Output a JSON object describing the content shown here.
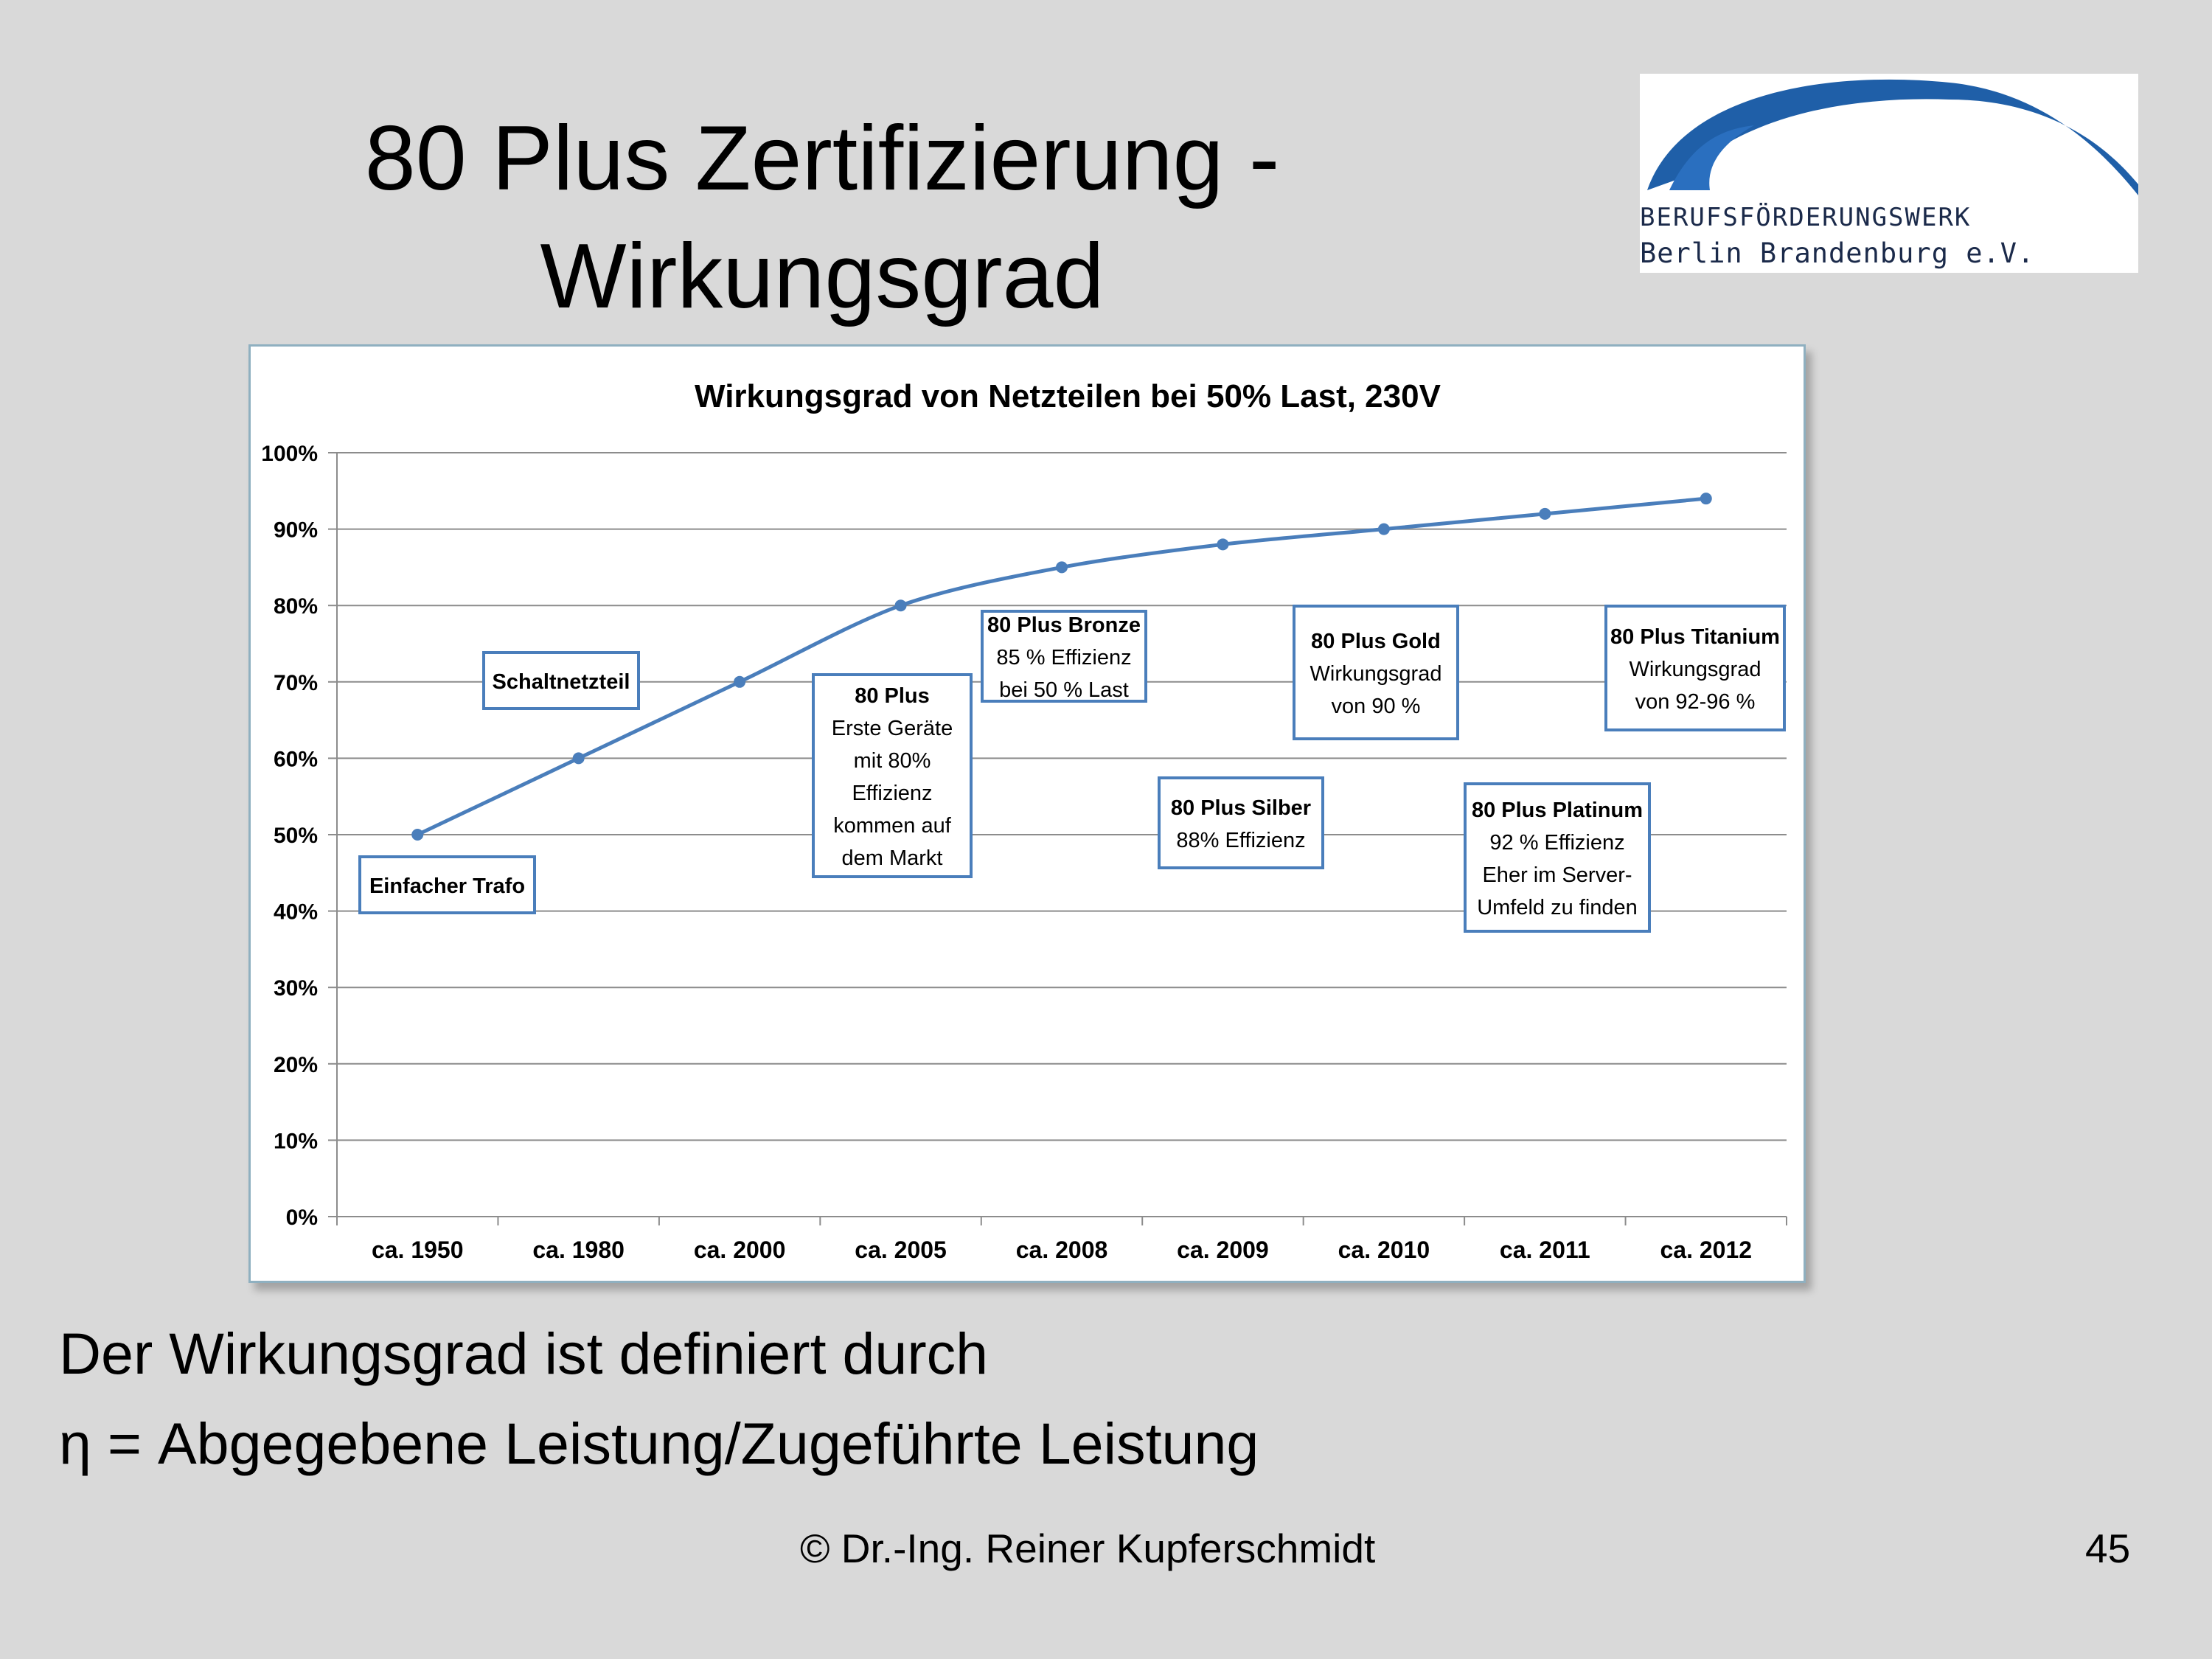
{
  "slide": {
    "title_line1": "80 Plus Zertifizierung -",
    "title_line2": "Wirkungsgrad",
    "body_line1": "Der Wirkungsgrad ist definiert durch",
    "body_line2": "η = Abgegebene Leistung/Zugeführte Leistung",
    "copyright": "© Dr.-Ing. Reiner Kupferschmidt",
    "page_number": "45"
  },
  "logo": {
    "line1": "BERUFSFÖRDERUNGSWERK",
    "line2": "Berlin Brandenburg e.V.",
    "color": "#1f5fa8"
  },
  "chart_data": {
    "type": "line",
    "title": "Wirkungsgrad von Netzteilen bei 50% Last, 230V",
    "categories": [
      "ca. 1950",
      "ca. 1980",
      "ca. 2000",
      "ca. 2005",
      "ca. 2008",
      "ca. 2009",
      "ca. 2010",
      "ca. 2011",
      "ca. 2012"
    ],
    "series": [
      {
        "values": [
          50,
          60,
          70,
          80,
          85,
          88,
          90,
          92,
          94
        ],
        "color": "#4a7ebb"
      }
    ],
    "ylim": [
      0,
      100
    ],
    "yticks": [
      "0%",
      "10%",
      "20%",
      "30%",
      "40%",
      "50%",
      "60%",
      "70%",
      "80%",
      "90%",
      "100%"
    ],
    "grid": true,
    "annotations": [
      {
        "lines": [
          "Einfacher Trafo"
        ]
      },
      {
        "lines": [
          "Schaltnetzteil"
        ]
      },
      {
        "lines": [
          "80 Plus",
          "Erste Geräte",
          "mit 80%",
          "Effizienz",
          "kommen auf",
          "dem Markt"
        ]
      },
      {
        "lines": [
          "80 Plus Bronze",
          "85 % Effizienz",
          "bei 50 % Last"
        ]
      },
      {
        "lines": [
          "80 Plus Silber",
          "88% Effizienz"
        ]
      },
      {
        "lines": [
          "80 Plus Gold",
          "Wirkungsgrad",
          "von 90 %"
        ]
      },
      {
        "lines": [
          "80 Plus Platinum",
          "92 % Effizienz",
          "Eher im Server-",
          "Umfeld zu finden"
        ]
      },
      {
        "lines": [
          "80 Plus Titanium",
          "Wirkungsgrad",
          "von 92-96 %"
        ]
      }
    ]
  }
}
